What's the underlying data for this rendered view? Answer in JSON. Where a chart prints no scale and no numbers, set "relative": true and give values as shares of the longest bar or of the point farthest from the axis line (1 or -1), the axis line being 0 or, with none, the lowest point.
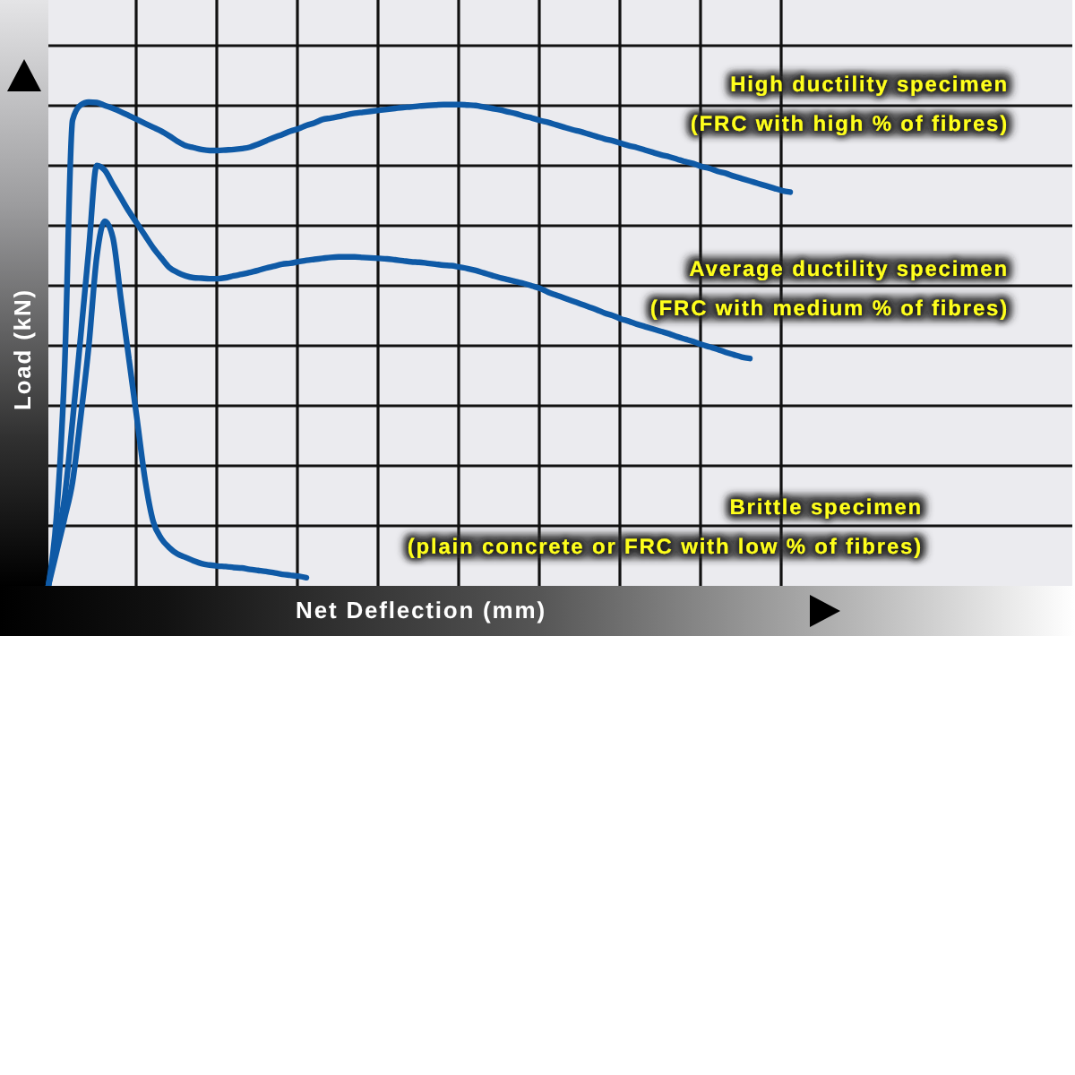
{
  "chart_data": {
    "type": "line",
    "xlabel": "Net Deflection (mm)",
    "ylabel": "Load (kN)",
    "relative": true,
    "grid": true,
    "marker": "none",
    "line_style": "solid",
    "categories": [
      null,
      null,
      null,
      null,
      null,
      null,
      null,
      null,
      null,
      null,
      null,
      null,
      null,
      null,
      null,
      null,
      null,
      null,
      null,
      null,
      null,
      null,
      null,
      null,
      null,
      null,
      null,
      null,
      null,
      null,
      null,
      null,
      null,
      null,
      null,
      null,
      null,
      null,
      null,
      null,
      null,
      null,
      null,
      null,
      null,
      null,
      null,
      null,
      null,
      null,
      null,
      null,
      null,
      null,
      null,
      null,
      null,
      null,
      null,
      null,
      null,
      null,
      null,
      null,
      null,
      null,
      null,
      null,
      null,
      null,
      null,
      null,
      null,
      null,
      null,
      null,
      null,
      null,
      null,
      null,
      null,
      null,
      null,
      null,
      null,
      null,
      null,
      null,
      null,
      null,
      null,
      null,
      null,
      null,
      null,
      null,
      null,
      null,
      null,
      null,
      null,
      null,
      null,
      null,
      null,
      null,
      null,
      null,
      null,
      null,
      null,
      null,
      null,
      null,
      null,
      null,
      null,
      null,
      null,
      null,
      null,
      null,
      null,
      null,
      null,
      null,
      null,
      null
    ],
    "series": [
      {
        "color": "#0f5aa6",
        "values": [
          0,
          0.142,
          0.444,
          0.963,
          0.994,
          1,
          0.999,
          0.993,
          0.987,
          0.98,
          0.972,
          0.964,
          0.956,
          0.948,
          0.94,
          0.93,
          0.919,
          0.91,
          0.906,
          0.902,
          0.9,
          0.9,
          0.901,
          0.902,
          0.904,
          0.907,
          0.913,
          0.92,
          0.927,
          0.933,
          0.94,
          0.945,
          0.952,
          0.957,
          0.964,
          0.967,
          0.97,
          0.974,
          0.977,
          0.979,
          0.981,
          0.983,
          0.985,
          0.987,
          0.989,
          0.99,
          0.992,
          0.993,
          0.994,
          0.995,
          0.995,
          0.995,
          0.994,
          0.993,
          0.99,
          0.987,
          0.984,
          0.98,
          0.976,
          0.971,
          0.967,
          0.962,
          0.958,
          0.953,
          0.948,
          0.943,
          0.939,
          0.934,
          0.929,
          0.924,
          0.92,
          0.915,
          0.91,
          0.906,
          0.901,
          0.896,
          0.891,
          0.887,
          0.882,
          0.877,
          0.873,
          0.867,
          0.863,
          0.857,
          0.853,
          0.847,
          0.842,
          0.837,
          0.832,
          0.827,
          0.822,
          0.817,
          0.814,
          null,
          null,
          null,
          null,
          null,
          null,
          null,
          null,
          null,
          null,
          null,
          null,
          null,
          null,
          null,
          null,
          null,
          null,
          null,
          null,
          null,
          null,
          null,
          null,
          null,
          null,
          null,
          null,
          null,
          null,
          null,
          null,
          null,
          null,
          null
        ]
      },
      {
        "color": "#0f5aa6",
        "values": [
          0,
          0.093,
          0.181,
          0.341,
          0.515,
          0.693,
          0.869,
          0.859,
          0.83,
          0.802,
          0.774,
          0.749,
          0.724,
          0.699,
          0.678,
          0.658,
          0.648,
          0.641,
          0.637,
          0.636,
          0.635,
          0.635,
          0.637,
          0.641,
          0.644,
          0.648,
          0.652,
          0.657,
          0.661,
          0.665,
          0.667,
          0.67,
          0.673,
          0.675,
          0.677,
          0.679,
          0.68,
          0.68,
          0.68,
          0.679,
          0.678,
          0.677,
          0.676,
          0.674,
          0.672,
          0.67,
          0.669,
          0.667,
          0.665,
          0.663,
          0.662,
          0.659,
          0.656,
          0.652,
          0.647,
          0.642,
          0.637,
          0.633,
          0.629,
          0.625,
          0.62,
          0.615,
          0.607,
          0.601,
          0.595,
          0.589,
          0.583,
          0.577,
          0.571,
          0.564,
          0.559,
          0.552,
          0.547,
          0.541,
          0.536,
          0.531,
          0.526,
          0.521,
          0.515,
          0.51,
          0.505,
          0.499,
          0.494,
          0.489,
          0.483,
          0.478,
          0.473,
          0.47,
          null,
          null,
          null,
          null,
          null,
          null,
          null,
          null,
          null,
          null,
          null,
          null,
          null,
          null,
          null,
          null,
          null,
          null,
          null,
          null,
          null,
          null,
          null,
          null,
          null,
          null,
          null,
          null,
          null,
          null,
          null,
          null,
          null,
          null,
          null,
          null,
          null,
          null,
          null,
          null
        ]
      },
      {
        "color": "#0f5aa6",
        "values": [
          0,
          0.069,
          0.139,
          0.215,
          0.348,
          0.494,
          0.68,
          0.754,
          0.72,
          0.593,
          0.468,
          0.344,
          0.219,
          0.133,
          0.098,
          0.079,
          0.066,
          0.059,
          0.052,
          0.046,
          0.043,
          0.041,
          0.04,
          0.038,
          0.037,
          0.034,
          0.032,
          0.03,
          0.027,
          0.024,
          0.022,
          0.02,
          0.017,
          null,
          null,
          null,
          null,
          null,
          null,
          null,
          null,
          null,
          null,
          null,
          null,
          null,
          null,
          null,
          null,
          null,
          null,
          null,
          null,
          null,
          null,
          null,
          null,
          null,
          null,
          null,
          null,
          null,
          null,
          null,
          null,
          null,
          null,
          null,
          null,
          null,
          null,
          null,
          null,
          null,
          null,
          null,
          null,
          null,
          null,
          null,
          null,
          null,
          null,
          null,
          null,
          null,
          null,
          null,
          null,
          null,
          null,
          null,
          null,
          null,
          null,
          null,
          null,
          null,
          null,
          null,
          null,
          null,
          null,
          null,
          null,
          null,
          null,
          null,
          null,
          null,
          null,
          null,
          null,
          null,
          null,
          null,
          null,
          null,
          null,
          null,
          null,
          null,
          null,
          null,
          null,
          null,
          null,
          null
        ]
      }
    ],
    "annotations": [
      "High ductility specimen",
      "(FRC with high % of fibres)",
      "Average ductility specimen",
      "(FRC with medium % of fibres)",
      "Brittle specimen",
      "(plain concrete or FRC with low % of fibres)"
    ]
  }
}
